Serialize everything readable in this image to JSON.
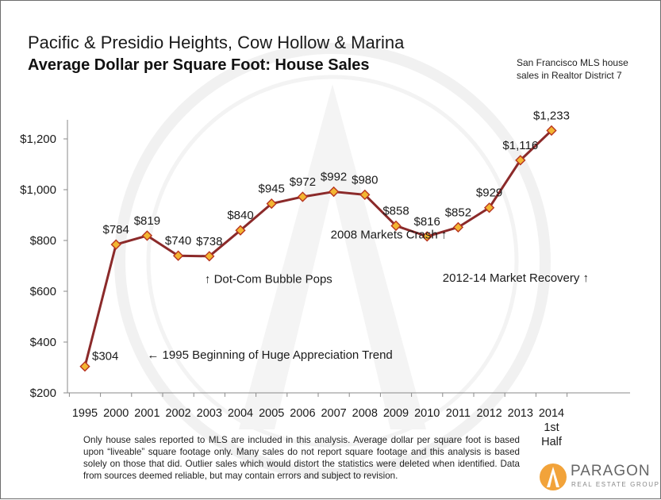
{
  "header": {
    "title": "Pacific & Presidio Heights, Cow Hollow & Marina",
    "subtitle": "Average Dollar per Square Foot: House Sales",
    "source_note": "San Francisco MLS house sales in Realtor District 7"
  },
  "footnote": "Only house sales reported to MLS are included in this analysis. Average dollar per square foot is based upon “liveable” square footage only. Many sales do not report square footage and this analysis is based solely on those that did. Outlier sales which would distort the statistics were deleted when identified. Data from sources deemed reliable, but may contain errors and subject to revision.",
  "logo": {
    "name": "PARAGON",
    "tagline": "REAL ESTATE GROUP"
  },
  "chart_data": {
    "type": "line",
    "title": "Average Dollar per Square Foot: House Sales",
    "categories": [
      "1995",
      "2000",
      "2001",
      "2002",
      "2003",
      "2004",
      "2005",
      "2006",
      "2007",
      "2008",
      "2009",
      "2010",
      "2011",
      "2012",
      "2013",
      "2014"
    ],
    "last_category_extra_lines": [
      "1st",
      "Half"
    ],
    "values": [
      304,
      784,
      819,
      740,
      738,
      840,
      945,
      972,
      992,
      980,
      858,
      816,
      852,
      929,
      1116,
      1233
    ],
    "data_labels": [
      "$304",
      "$784",
      "$819",
      "$740",
      "$738",
      "$840",
      "$945",
      "$972",
      "$992",
      "$980",
      "$858",
      "$816",
      "$852",
      "$929",
      "$1,116",
      "$1,233"
    ],
    "ylim": [
      200,
      1300
    ],
    "y_ticks": [
      200,
      400,
      600,
      800,
      1000,
      1200
    ],
    "y_tick_labels": [
      "$200",
      "$400",
      "$600",
      "$800",
      "$1,000",
      "$1,200"
    ],
    "grid": false,
    "line_color": "#8b2a2a",
    "marker_color": "#f2b632",
    "annotations": [
      {
        "text": "← 1995 Beginning of Huge Appreciation Trend",
        "x_index": 2,
        "y_value": 335
      },
      {
        "text": "↑ Dot-Com Bubble Pops",
        "x_index": 3.85,
        "y_value": 633
      },
      {
        "text": "2008 Markets Crash ↑",
        "x_index": 7.9,
        "y_value": 808
      },
      {
        "text": "2012-14 Market Recovery ↑",
        "x_index": 11.5,
        "y_value": 637
      }
    ]
  }
}
